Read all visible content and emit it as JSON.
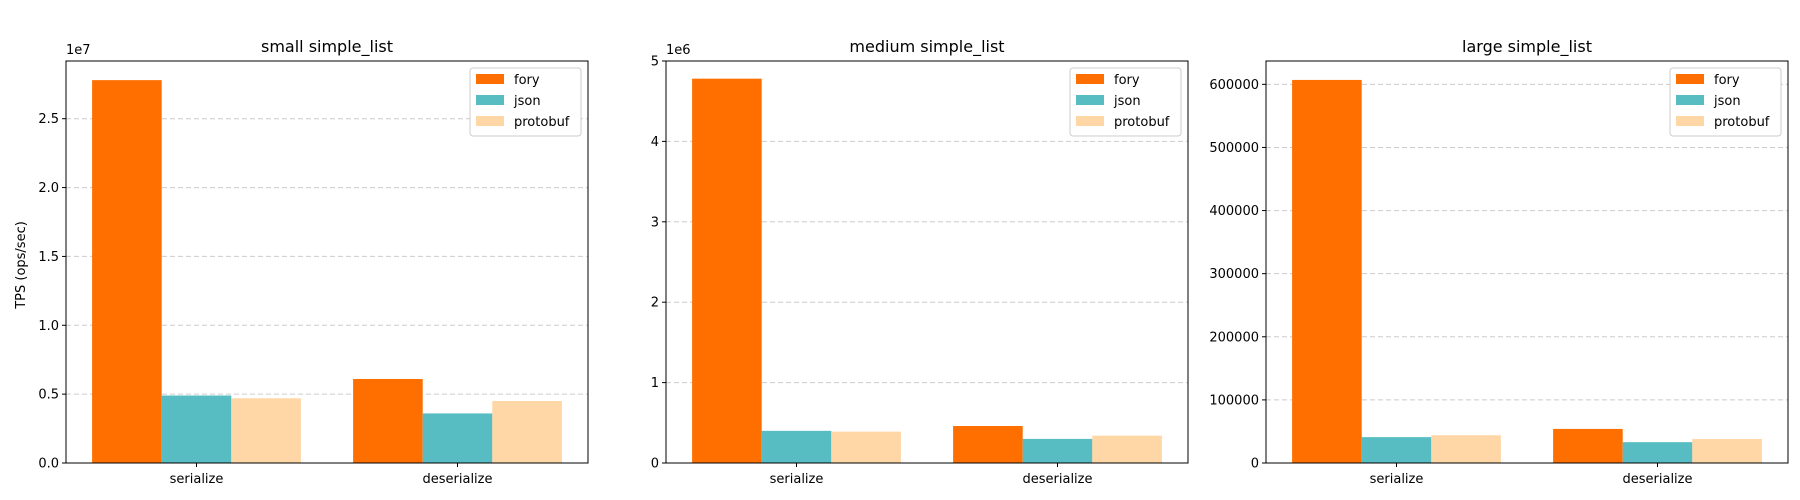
{
  "figure": {
    "ylabel": "TPS (ops/sec)"
  },
  "colors": {
    "fory": "#FF6F00",
    "json": "#58BDC2",
    "protobuf": "#FFD6A5"
  },
  "chart_data": [
    {
      "type": "bar",
      "title": "small simple_list",
      "ylabel": "TPS (ops/sec)",
      "categories": [
        "serialize",
        "deserialize"
      ],
      "series": [
        {
          "name": "fory",
          "values": [
            27800000,
            6100000
          ]
        },
        {
          "name": "json",
          "values": [
            4900000,
            3600000
          ]
        },
        {
          "name": "protobuf",
          "values": [
            4700000,
            4500000
          ]
        }
      ],
      "ylim": [
        0,
        29190000
      ],
      "yticks": [
        0,
        5000000,
        10000000,
        15000000,
        20000000,
        25000000
      ],
      "ytick_labels": [
        "0.0",
        "0.5",
        "1.0",
        "1.5",
        "2.0",
        "2.5"
      ],
      "offset_label": "1e7",
      "grid": "y",
      "legend": "upper right"
    },
    {
      "type": "bar",
      "title": "medium simple_list",
      "ylabel": "",
      "categories": [
        "serialize",
        "deserialize"
      ],
      "series": [
        {
          "name": "fory",
          "values": [
            4780000,
            460000
          ]
        },
        {
          "name": "json",
          "values": [
            400000,
            300000
          ]
        },
        {
          "name": "protobuf",
          "values": [
            390000,
            340000
          ]
        }
      ],
      "ylim": [
        0,
        5000000
      ],
      "yticks": [
        0,
        1000000,
        2000000,
        3000000,
        4000000,
        5000000
      ],
      "ytick_labels": [
        "0",
        "1",
        "2",
        "3",
        "4",
        "5"
      ],
      "offset_label": "1e6",
      "grid": "y",
      "legend": "upper right"
    },
    {
      "type": "bar",
      "title": "large simple_list",
      "ylabel": "",
      "categories": [
        "serialize",
        "deserialize"
      ],
      "series": [
        {
          "name": "fory",
          "values": [
            607000,
            54000
          ]
        },
        {
          "name": "json",
          "values": [
            41000,
            33000
          ]
        },
        {
          "name": "protobuf",
          "values": [
            44000,
            38000
          ]
        }
      ],
      "ylim": [
        0,
        637000
      ],
      "yticks": [
        0,
        100000,
        200000,
        300000,
        400000,
        500000,
        600000
      ],
      "ytick_labels": [
        "0",
        "100000",
        "200000",
        "300000",
        "400000",
        "500000",
        "600000"
      ],
      "offset_label": "",
      "grid": "y",
      "legend": "upper right"
    }
  ]
}
